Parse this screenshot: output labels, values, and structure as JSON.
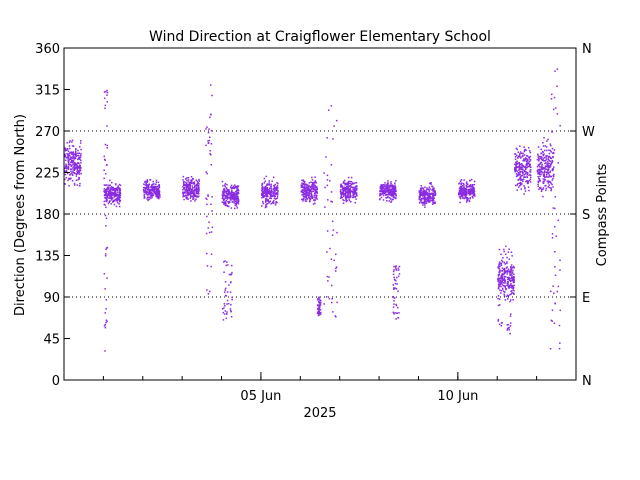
{
  "chart_data": {
    "type": "scatter",
    "title": "Wind Direction at Craigflower Elementary School",
    "xlabel": "2025",
    "ylabel": "Direction (Degrees from North)",
    "y2label": "Compass Points",
    "ylim": [
      0,
      360
    ],
    "xlim": [
      "2025-05-31",
      "2025-06-13"
    ],
    "yticks": [
      "0",
      "45",
      "90",
      "135",
      "180",
      "225",
      "270",
      "315",
      "360"
    ],
    "xticks": [
      {
        "date": "2025-06-05",
        "label": "05 Jun"
      },
      {
        "date": "2025-06-10",
        "label": "10 Jun"
      }
    ],
    "compass_ticks": [
      {
        "value": 0,
        "label": "N"
      },
      {
        "value": 90,
        "label": "E"
      },
      {
        "value": 180,
        "label": "S"
      },
      {
        "value": 270,
        "label": "W"
      },
      {
        "value": 360,
        "label": "N"
      }
    ],
    "reference_lines": [
      90,
      180,
      270
    ],
    "point_color": "#8a2be2",
    "clusters": [
      {
        "start": "2025-05-31T00:00",
        "end": "2025-05-31T10:00",
        "center": 235,
        "spread": 35
      },
      {
        "start": "2025-06-01T00:00",
        "end": "2025-06-01T10:00",
        "center": 202,
        "spread": 18
      },
      {
        "start": "2025-06-02T00:00",
        "end": "2025-06-02T10:00",
        "center": 205,
        "spread": 16
      },
      {
        "start": "2025-06-03T00:00",
        "end": "2025-06-03T10:00",
        "center": 207,
        "spread": 18
      },
      {
        "start": "2025-06-04T00:00",
        "end": "2025-06-04T10:00",
        "center": 200,
        "spread": 22
      },
      {
        "start": "2025-06-05T00:00",
        "end": "2025-06-05T10:00",
        "center": 203,
        "spread": 20
      },
      {
        "start": "2025-06-06T00:00",
        "end": "2025-06-06T10:00",
        "center": 205,
        "spread": 20
      },
      {
        "start": "2025-06-07T00:00",
        "end": "2025-06-07T10:00",
        "center": 205,
        "spread": 17
      },
      {
        "start": "2025-06-08T00:00",
        "end": "2025-06-08T10:00",
        "center": 205,
        "spread": 16
      },
      {
        "start": "2025-06-09T00:00",
        "end": "2025-06-09T10:00",
        "center": 200,
        "spread": 16
      },
      {
        "start": "2025-06-10T00:00",
        "end": "2025-06-10T10:00",
        "center": 205,
        "spread": 18
      },
      {
        "start": "2025-06-11T00:00",
        "end": "2025-06-11T10:00",
        "center": 110,
        "spread": 35
      },
      {
        "start": "2025-06-11T10:00",
        "end": "2025-06-11T20:00",
        "center": 230,
        "spread": 35
      },
      {
        "start": "2025-06-12T00:00",
        "end": "2025-06-12T10:00",
        "center": 230,
        "spread": 45
      }
    ],
    "streaks": [
      {
        "start": "2025-06-01T00:00",
        "end": "2025-06-01T02:00",
        "low": 20,
        "high": 320
      },
      {
        "start": "2025-06-03T14:00",
        "end": "2025-06-03T18:00",
        "low": 90,
        "high": 330
      },
      {
        "start": "2025-06-04T00:00",
        "end": "2025-06-04T06:00",
        "low": 65,
        "high": 130
      },
      {
        "start": "2025-06-06T10:00",
        "end": "2025-06-06T12:00",
        "low": 70,
        "high": 90
      },
      {
        "start": "2025-06-06T14:00",
        "end": "2025-06-06T22:00",
        "low": 60,
        "high": 305
      },
      {
        "start": "2025-06-08T08:00",
        "end": "2025-06-08T12:00",
        "low": 65,
        "high": 125
      },
      {
        "start": "2025-06-11T00:00",
        "end": "2025-06-11T08:00",
        "low": 50,
        "high": 150
      },
      {
        "start": "2025-06-12T08:00",
        "end": "2025-06-12T14:00",
        "low": 30,
        "high": 360
      }
    ]
  }
}
